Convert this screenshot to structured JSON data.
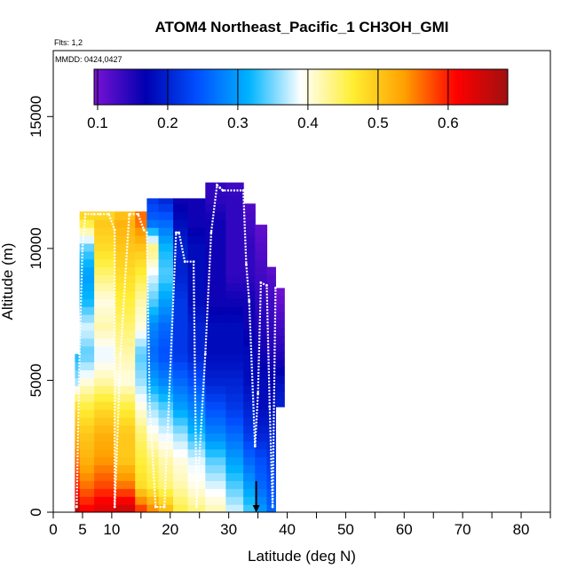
{
  "title": "ATOM4 Northeast_Pacific_1 CH3OH_GMI",
  "flights_label": "Flts: 1,2",
  "dates_label": "MMDD: 0424,0427",
  "chart_data": {
    "type": "heatmap",
    "title": "ATOM4 Northeast_Pacific_1 CH3OH_GMI",
    "xlabel": "Latitude (deg N)",
    "ylabel": "Altitude (m)",
    "xlim": [
      0,
      85
    ],
    "ylim": [
      0,
      17500
    ],
    "x_ticks": [
      0,
      5,
      10,
      20,
      30,
      40,
      50,
      60,
      70,
      80
    ],
    "x_minor_ticks": [
      15,
      25,
      35,
      45,
      55,
      65,
      75,
      85
    ],
    "y_ticks": [
      0,
      5000,
      10000,
      15000
    ],
    "grid": false,
    "colorbar": {
      "placement": "top-inside",
      "range": [
        0.095,
        0.685
      ],
      "ticks": [
        0.1,
        0.2,
        0.3,
        0.4,
        0.5,
        0.6
      ],
      "tick_labels": [
        "0.1",
        "0.2",
        "0.3",
        "0.4",
        "0.5",
        "0.6"
      ],
      "colors": [
        "#7a12d4",
        "#0000b0",
        "#0050ff",
        "#00b4ff",
        "#ffffff",
        "#ffee33",
        "#ffa000",
        "#ff0000",
        "#a01010"
      ]
    },
    "heatmap_columns": [
      {
        "lat": [
          3.7,
          5.5
        ],
        "alt_range": [
          0,
          6000
        ],
        "profile": [
          [
            0,
            0.68
          ],
          [
            1000,
            0.6
          ],
          [
            2000,
            0.56
          ],
          [
            3000,
            0.52
          ],
          [
            4000,
            0.48
          ],
          [
            5000,
            0.36
          ],
          [
            6000,
            0.32
          ]
        ]
      },
      {
        "lat": [
          4.5,
          7.0
        ],
        "alt_range": [
          0,
          11400
        ],
        "profile": [
          [
            0,
            0.62
          ],
          [
            1000,
            0.56
          ],
          [
            2000,
            0.52
          ],
          [
            3000,
            0.5
          ],
          [
            4000,
            0.46
          ],
          [
            5000,
            0.4
          ],
          [
            6000,
            0.34
          ],
          [
            7000,
            0.38
          ],
          [
            8000,
            0.32
          ],
          [
            9000,
            0.3
          ],
          [
            10000,
            0.34
          ],
          [
            11000,
            0.46
          ],
          [
            11400,
            0.5
          ]
        ]
      },
      {
        "lat": [
          7.0,
          10.5
        ],
        "alt_range": [
          0,
          11400
        ],
        "profile": [
          [
            0,
            0.64
          ],
          [
            1000,
            0.58
          ],
          [
            2000,
            0.54
          ],
          [
            3000,
            0.52
          ],
          [
            4000,
            0.48
          ],
          [
            5000,
            0.42
          ],
          [
            6000,
            0.38
          ],
          [
            7000,
            0.42
          ],
          [
            8000,
            0.4
          ],
          [
            9000,
            0.44
          ],
          [
            10000,
            0.48
          ],
          [
            11000,
            0.5
          ],
          [
            11400,
            0.48
          ]
        ]
      },
      {
        "lat": [
          10.5,
          14.0
        ],
        "alt_range": [
          0,
          11400
        ],
        "profile": [
          [
            0,
            0.66
          ],
          [
            1000,
            0.56
          ],
          [
            2000,
            0.5
          ],
          [
            3000,
            0.5
          ],
          [
            4000,
            0.46
          ],
          [
            5000,
            0.4
          ],
          [
            6000,
            0.42
          ],
          [
            7000,
            0.44
          ],
          [
            8000,
            0.46
          ],
          [
            9000,
            0.48
          ],
          [
            10000,
            0.5
          ],
          [
            11000,
            0.52
          ],
          [
            11400,
            0.5
          ]
        ]
      },
      {
        "lat": [
          14.0,
          16.0
        ],
        "alt_range": [
          0,
          11400
        ],
        "profile": [
          [
            0,
            0.6
          ],
          [
            1000,
            0.48
          ],
          [
            2000,
            0.46
          ],
          [
            3000,
            0.44
          ],
          [
            4000,
            0.4
          ],
          [
            5000,
            0.36
          ],
          [
            6000,
            0.34
          ],
          [
            7000,
            0.4
          ],
          [
            8000,
            0.42
          ],
          [
            9000,
            0.46
          ],
          [
            10000,
            0.5
          ],
          [
            11000,
            0.56
          ],
          [
            11400,
            0.56
          ]
        ]
      },
      {
        "lat": [
          16.0,
          18.0
        ],
        "alt_range": [
          0,
          11900
        ],
        "profile": [
          [
            0,
            0.56
          ],
          [
            1000,
            0.46
          ],
          [
            2000,
            0.44
          ],
          [
            3000,
            0.4
          ],
          [
            4000,
            0.36
          ],
          [
            5000,
            0.3
          ],
          [
            6000,
            0.26
          ],
          [
            7000,
            0.28
          ],
          [
            8000,
            0.34
          ],
          [
            9000,
            0.38
          ],
          [
            10000,
            0.44
          ],
          [
            11000,
            0.26
          ],
          [
            11900,
            0.22
          ]
        ]
      },
      {
        "lat": [
          18.0,
          20.5
        ],
        "alt_range": [
          0,
          11900
        ],
        "profile": [
          [
            0,
            0.52
          ],
          [
            1000,
            0.44
          ],
          [
            2000,
            0.42
          ],
          [
            3000,
            0.38
          ],
          [
            4000,
            0.34
          ],
          [
            5000,
            0.28
          ],
          [
            6000,
            0.24
          ],
          [
            7000,
            0.26
          ],
          [
            8000,
            0.3
          ],
          [
            9000,
            0.34
          ],
          [
            10000,
            0.32
          ],
          [
            11000,
            0.26
          ],
          [
            11900,
            0.2
          ]
        ]
      },
      {
        "lat": [
          20.5,
          23.0
        ],
        "alt_range": [
          0,
          11900
        ],
        "profile": [
          [
            0,
            0.46
          ],
          [
            1000,
            0.42
          ],
          [
            2000,
            0.4
          ],
          [
            3000,
            0.36
          ],
          [
            4000,
            0.3
          ],
          [
            5000,
            0.26
          ],
          [
            6000,
            0.22
          ],
          [
            7000,
            0.22
          ],
          [
            8000,
            0.22
          ],
          [
            9000,
            0.2
          ],
          [
            10000,
            0.2
          ],
          [
            11000,
            0.18
          ],
          [
            11900,
            0.16
          ]
        ]
      },
      {
        "lat": [
          23.0,
          26.0
        ],
        "alt_range": [
          0,
          11900
        ],
        "profile": [
          [
            0,
            0.44
          ],
          [
            1000,
            0.4
          ],
          [
            2000,
            0.38
          ],
          [
            3000,
            0.32
          ],
          [
            4000,
            0.28
          ],
          [
            5000,
            0.24
          ],
          [
            6000,
            0.2
          ],
          [
            7000,
            0.2
          ],
          [
            8000,
            0.18
          ],
          [
            9000,
            0.18
          ],
          [
            10000,
            0.18
          ],
          [
            11000,
            0.16
          ],
          [
            11900,
            0.16
          ]
        ]
      },
      {
        "lat": [
          26.0,
          29.5
        ],
        "alt_range": [
          0,
          12500
        ],
        "profile": [
          [
            0,
            0.42
          ],
          [
            1000,
            0.38
          ],
          [
            2000,
            0.34
          ],
          [
            3000,
            0.28
          ],
          [
            4000,
            0.24
          ],
          [
            5000,
            0.2
          ],
          [
            6000,
            0.18
          ],
          [
            7000,
            0.18
          ],
          [
            8000,
            0.16
          ],
          [
            9000,
            0.16
          ],
          [
            10000,
            0.16
          ],
          [
            11000,
            0.16
          ],
          [
            12000,
            0.14
          ],
          [
            12500,
            0.14
          ]
        ]
      },
      {
        "lat": [
          29.5,
          32.5
        ],
        "alt_range": [
          0,
          12500
        ],
        "profile": [
          [
            0,
            0.38
          ],
          [
            1000,
            0.34
          ],
          [
            2000,
            0.3
          ],
          [
            3000,
            0.26
          ],
          [
            4000,
            0.22
          ],
          [
            5000,
            0.2
          ],
          [
            6000,
            0.18
          ],
          [
            7000,
            0.18
          ],
          [
            8000,
            0.16
          ],
          [
            9000,
            0.14
          ],
          [
            10000,
            0.14
          ],
          [
            11000,
            0.14
          ],
          [
            12000,
            0.14
          ],
          [
            12500,
            0.13
          ]
        ]
      },
      {
        "lat": [
          32.5,
          34.5
        ],
        "alt_range": [
          0,
          11700
        ],
        "profile": [
          [
            0,
            0.34
          ],
          [
            1000,
            0.3
          ],
          [
            2000,
            0.26
          ],
          [
            3000,
            0.22
          ],
          [
            4000,
            0.2
          ],
          [
            5000,
            0.18
          ],
          [
            6000,
            0.18
          ],
          [
            7000,
            0.16
          ],
          [
            8000,
            0.16
          ],
          [
            9000,
            0.14
          ],
          [
            10000,
            0.14
          ],
          [
            11000,
            0.13
          ],
          [
            11700,
            0.12
          ]
        ]
      },
      {
        "lat": [
          34.5,
          36.5
        ],
        "alt_range": [
          0,
          10900
        ],
        "profile": [
          [
            0,
            0.3
          ],
          [
            1000,
            0.26
          ],
          [
            2000,
            0.24
          ],
          [
            3000,
            0.2
          ],
          [
            4000,
            0.18
          ],
          [
            5000,
            0.18
          ],
          [
            6000,
            0.16
          ],
          [
            7000,
            0.15
          ],
          [
            8000,
            0.14
          ],
          [
            9000,
            0.13
          ],
          [
            10000,
            0.12
          ],
          [
            10900,
            0.11
          ]
        ]
      },
      {
        "lat": [
          36.5,
          38.0
        ],
        "alt_range": [
          0,
          9300
        ],
        "profile": [
          [
            0,
            0.26
          ],
          [
            1000,
            0.24
          ],
          [
            2000,
            0.22
          ],
          [
            3000,
            0.2
          ],
          [
            4000,
            0.18
          ],
          [
            5000,
            0.17
          ],
          [
            6000,
            0.15
          ],
          [
            7000,
            0.14
          ],
          [
            8000,
            0.13
          ],
          [
            9000,
            0.12
          ],
          [
            9300,
            0.11
          ]
        ]
      },
      {
        "lat": [
          38.0,
          39.5
        ],
        "alt_range": [
          4000,
          8500
        ],
        "profile": [
          [
            4000,
            0.2
          ],
          [
            5000,
            0.18
          ],
          [
            6000,
            0.15
          ],
          [
            7000,
            0.13
          ],
          [
            8000,
            0.11
          ],
          [
            8500,
            0.1
          ]
        ]
      }
    ],
    "series": [
      {
        "kind": "flight_track",
        "x": [
          4.0,
          4.5,
          5.0,
          5.5,
          7.0,
          8.0,
          9.5,
          10.5,
          10.5,
          11.5,
          13.0,
          14.5,
          15.5,
          16.0,
          16.5,
          17.5,
          19.0,
          21.0,
          21.5,
          22.5,
          24.0,
          24.5,
          26.0,
          27.0,
          28.0,
          28.5,
          29.0,
          32.5,
          33.0,
          33.5,
          34.5,
          35.0,
          35.5,
          36.5,
          37.0,
          37.5,
          38.0
        ],
        "y": [
          200,
          6000,
          10000,
          11300,
          11300,
          11300,
          11300,
          10700,
          200,
          6000,
          11300,
          11300,
          10700,
          10600,
          4000,
          200,
          200,
          10600,
          10600,
          9500,
          9500,
          200,
          6000,
          10600,
          12400,
          12300,
          12200,
          12200,
          9400,
          8000,
          2500,
          4500,
          8700,
          8600,
          4000,
          200,
          8500
        ]
      }
    ],
    "annotations": [
      {
        "type": "arrow-down",
        "x": 34.7,
        "y_from": 700,
        "y_to": 0
      }
    ]
  }
}
